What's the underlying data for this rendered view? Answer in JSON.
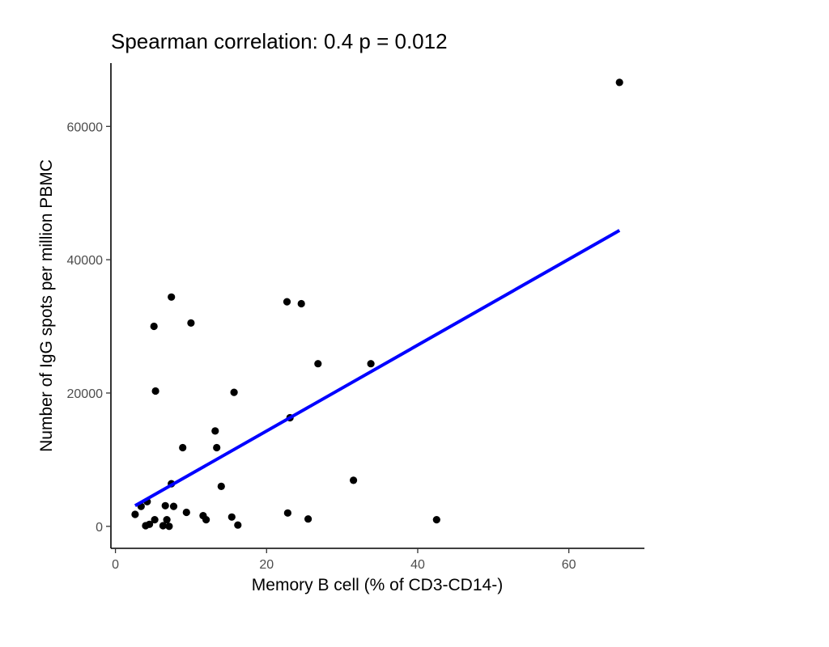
{
  "chart_data": {
    "type": "scatter",
    "title": "Spearman correlation: 0.4 p = 0.012",
    "xlabel": "Memory B cell (% of CD3-CD14-)",
    "ylabel": "Number of IgG spots per million PBMC",
    "xlim": [
      -0.6,
      70
    ],
    "ylim": [
      -3300,
      69500
    ],
    "x_ticks": [
      0,
      20,
      40,
      60
    ],
    "y_ticks": [
      0,
      20000,
      40000,
      60000
    ],
    "x_tick_labels": [
      "0",
      "20",
      "40",
      "60"
    ],
    "y_tick_labels": [
      "0",
      "20000",
      "40000",
      "60000"
    ],
    "grid": false,
    "point_color": "#000000",
    "line_color": "#0000ff",
    "trend_line": {
      "x": [
        2.6,
        66.7
      ],
      "y": [
        3100,
        44400
      ]
    },
    "points": [
      {
        "x": 2.6,
        "y": 1800
      },
      {
        "x": 3.4,
        "y": 3000
      },
      {
        "x": 4.0,
        "y": 100
      },
      {
        "x": 4.2,
        "y": 3700
      },
      {
        "x": 4.5,
        "y": 300
      },
      {
        "x": 5.1,
        "y": 30000
      },
      {
        "x": 5.2,
        "y": 1000
      },
      {
        "x": 5.3,
        "y": 20300
      },
      {
        "x": 6.3,
        "y": 100
      },
      {
        "x": 6.6,
        "y": 3100
      },
      {
        "x": 6.8,
        "y": 1000
      },
      {
        "x": 7.1,
        "y": 0
      },
      {
        "x": 7.4,
        "y": 34400
      },
      {
        "x": 7.4,
        "y": 6400
      },
      {
        "x": 7.7,
        "y": 3000
      },
      {
        "x": 8.9,
        "y": 11800
      },
      {
        "x": 9.4,
        "y": 2100
      },
      {
        "x": 10.0,
        "y": 30500
      },
      {
        "x": 11.6,
        "y": 1600
      },
      {
        "x": 12.0,
        "y": 1000
      },
      {
        "x": 13.2,
        "y": 14300
      },
      {
        "x": 13.4,
        "y": 11800
      },
      {
        "x": 14.0,
        "y": 6000
      },
      {
        "x": 15.4,
        "y": 1400
      },
      {
        "x": 15.7,
        "y": 20100
      },
      {
        "x": 16.2,
        "y": 200
      },
      {
        "x": 22.7,
        "y": 33700
      },
      {
        "x": 22.8,
        "y": 2000
      },
      {
        "x": 23.1,
        "y": 16300
      },
      {
        "x": 24.6,
        "y": 33400
      },
      {
        "x": 25.5,
        "y": 1100
      },
      {
        "x": 26.8,
        "y": 24400
      },
      {
        "x": 31.5,
        "y": 6900
      },
      {
        "x": 33.8,
        "y": 24400
      },
      {
        "x": 42.5,
        "y": 1000
      },
      {
        "x": 66.7,
        "y": 66600
      }
    ]
  }
}
